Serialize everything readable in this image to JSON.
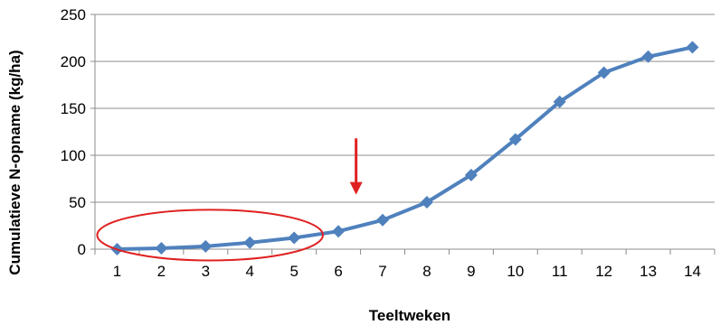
{
  "chart_data": {
    "type": "line",
    "x": [
      1,
      2,
      3,
      4,
      5,
      6,
      7,
      8,
      9,
      10,
      11,
      12,
      13,
      14
    ],
    "series": [
      {
        "values": [
          0,
          1,
          3,
          7,
          12,
          19,
          31,
          50,
          79,
          117,
          157,
          188,
          205,
          215
        ],
        "color": "#4f81bd",
        "marker": "diamond"
      }
    ],
    "xlabel": "Teeltweken",
    "ylabel": "Cumulatieve N-opname (kg/ha)",
    "ylim": [
      0,
      250
    ],
    "yticks": [
      0,
      50,
      100,
      150,
      200,
      250
    ],
    "xticks": [
      "1",
      "2",
      "3",
      "4",
      "5",
      "6",
      "7",
      "8",
      "9",
      "10",
      "11",
      "12",
      "13",
      "14"
    ],
    "grid": "horizontal",
    "annotations": [
      {
        "type": "ellipse",
        "color": "#e02020",
        "x_range": [
          0.55,
          5.65
        ],
        "y_range": [
          -12,
          42
        ]
      },
      {
        "type": "arrow",
        "color": "#e02020",
        "x": 6.4,
        "y_from": 118,
        "y_to": 58
      }
    ]
  }
}
